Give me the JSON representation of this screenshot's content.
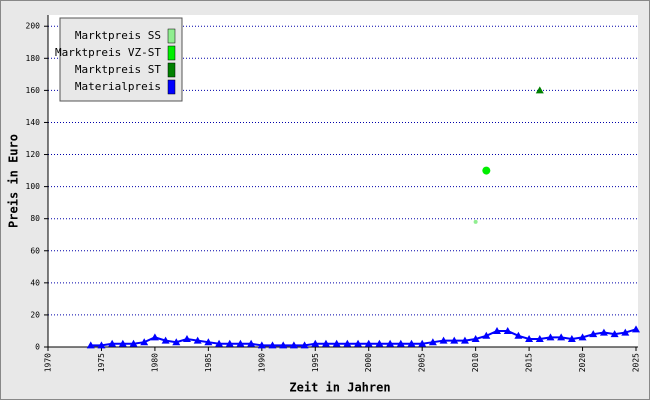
{
  "chart_data": {
    "type": "line",
    "x_label": "Zeit in Jahren",
    "y_label": "Preis in Euro",
    "xlim": [
      1970,
      2025
    ],
    "xticks": [
      1970,
      1975,
      1980,
      1985,
      1990,
      1995,
      2000,
      2005,
      2010,
      2015,
      2020,
      2025
    ],
    "ylim": [
      0,
      207
    ],
    "yticks": [
      0,
      20,
      40,
      60,
      80,
      100,
      120,
      140,
      160,
      180,
      200
    ],
    "grid": true,
    "legend": "top-left",
    "series": [
      {
        "name": "Marktpreis SS",
        "color": "#90ee90",
        "marker": "dot",
        "x": [
          2010
        ],
        "values": [
          78
        ]
      },
      {
        "name": "Marktpreis VZ-ST",
        "color": "#00ee00",
        "marker": "circle",
        "x": [
          2011
        ],
        "values": [
          110
        ]
      },
      {
        "name": "Marktpreis ST",
        "color": "#008000",
        "marker": "triangle",
        "x": [
          2016
        ],
        "values": [
          160
        ]
      },
      {
        "name": "Materialpreis",
        "color": "#0000ff",
        "marker": "triangle",
        "line": true,
        "x": [
          1974,
          1975,
          1976,
          1977,
          1978,
          1979,
          1980,
          1981,
          1982,
          1983,
          1984,
          1985,
          1986,
          1987,
          1988,
          1989,
          1990,
          1991,
          1992,
          1993,
          1994,
          1995,
          1996,
          1997,
          1998,
          1999,
          2000,
          2001,
          2002,
          2003,
          2004,
          2005,
          2006,
          2007,
          2008,
          2009,
          2010,
          2011,
          2012,
          2013,
          2014,
          2015,
          2016,
          2017,
          2018,
          2019,
          2020,
          2021,
          2022,
          2023,
          2024,
          2025
        ],
        "values": [
          1,
          1,
          2,
          2,
          2,
          3,
          6,
          4,
          3,
          5,
          4,
          3,
          2,
          2,
          2,
          2,
          1,
          1,
          1,
          1,
          1,
          2,
          2,
          2,
          2,
          2,
          2,
          2,
          2,
          2,
          2,
          2,
          3,
          4,
          4,
          4,
          5,
          7,
          10,
          10,
          7,
          5,
          5,
          6,
          6,
          5,
          6,
          8,
          9,
          8,
          9,
          11
        ]
      }
    ]
  }
}
